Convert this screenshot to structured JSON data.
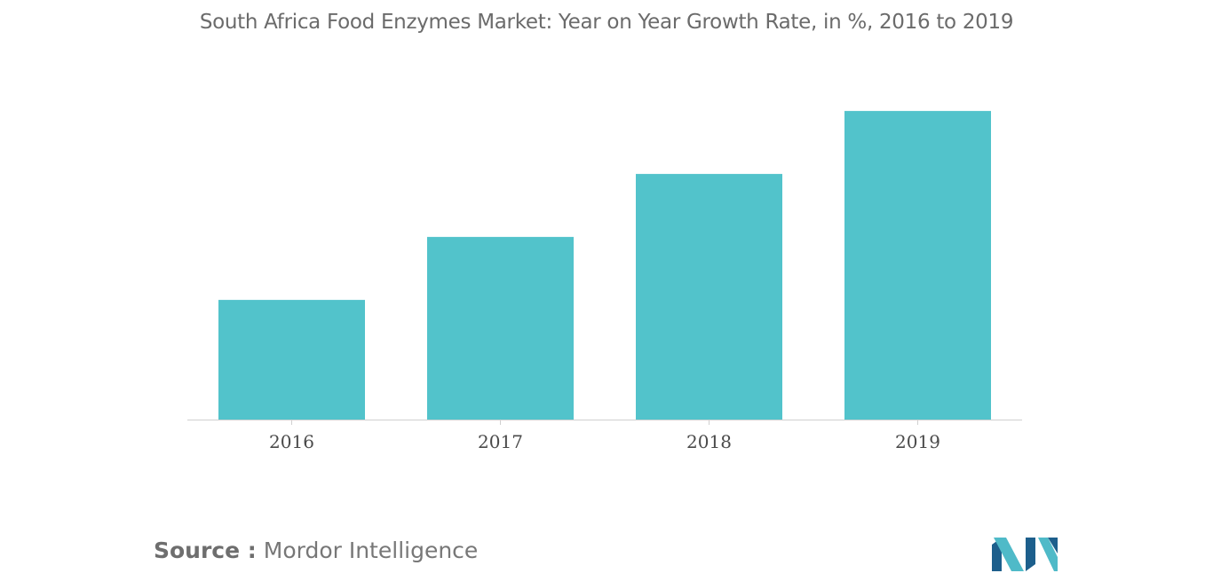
{
  "title": "South Africa Food Enzymes Market: Year on Year Growth Rate, in %, 2016 to 2019",
  "source": {
    "label": "Source :",
    "text": "Mordor Intelligence"
  },
  "colors": {
    "bar": "#52c3cb",
    "axis": "#d0d0d0",
    "logo_dark": "#1d5f8c",
    "logo_light": "#4fbac8"
  },
  "chart_data": {
    "type": "bar",
    "categories": [
      "2016",
      "2017",
      "2018",
      "2019"
    ],
    "values": [
      3.8,
      5.8,
      7.8,
      9.8
    ],
    "title": "South Africa Food Enzymes Market: Year on Year Growth Rate, in %, 2016 to 2019",
    "xlabel": "",
    "ylabel": "",
    "ylim": [
      0,
      10
    ],
    "grid": false,
    "legend": "none",
    "value_labels_shown": false,
    "y_axis_shown": false
  }
}
